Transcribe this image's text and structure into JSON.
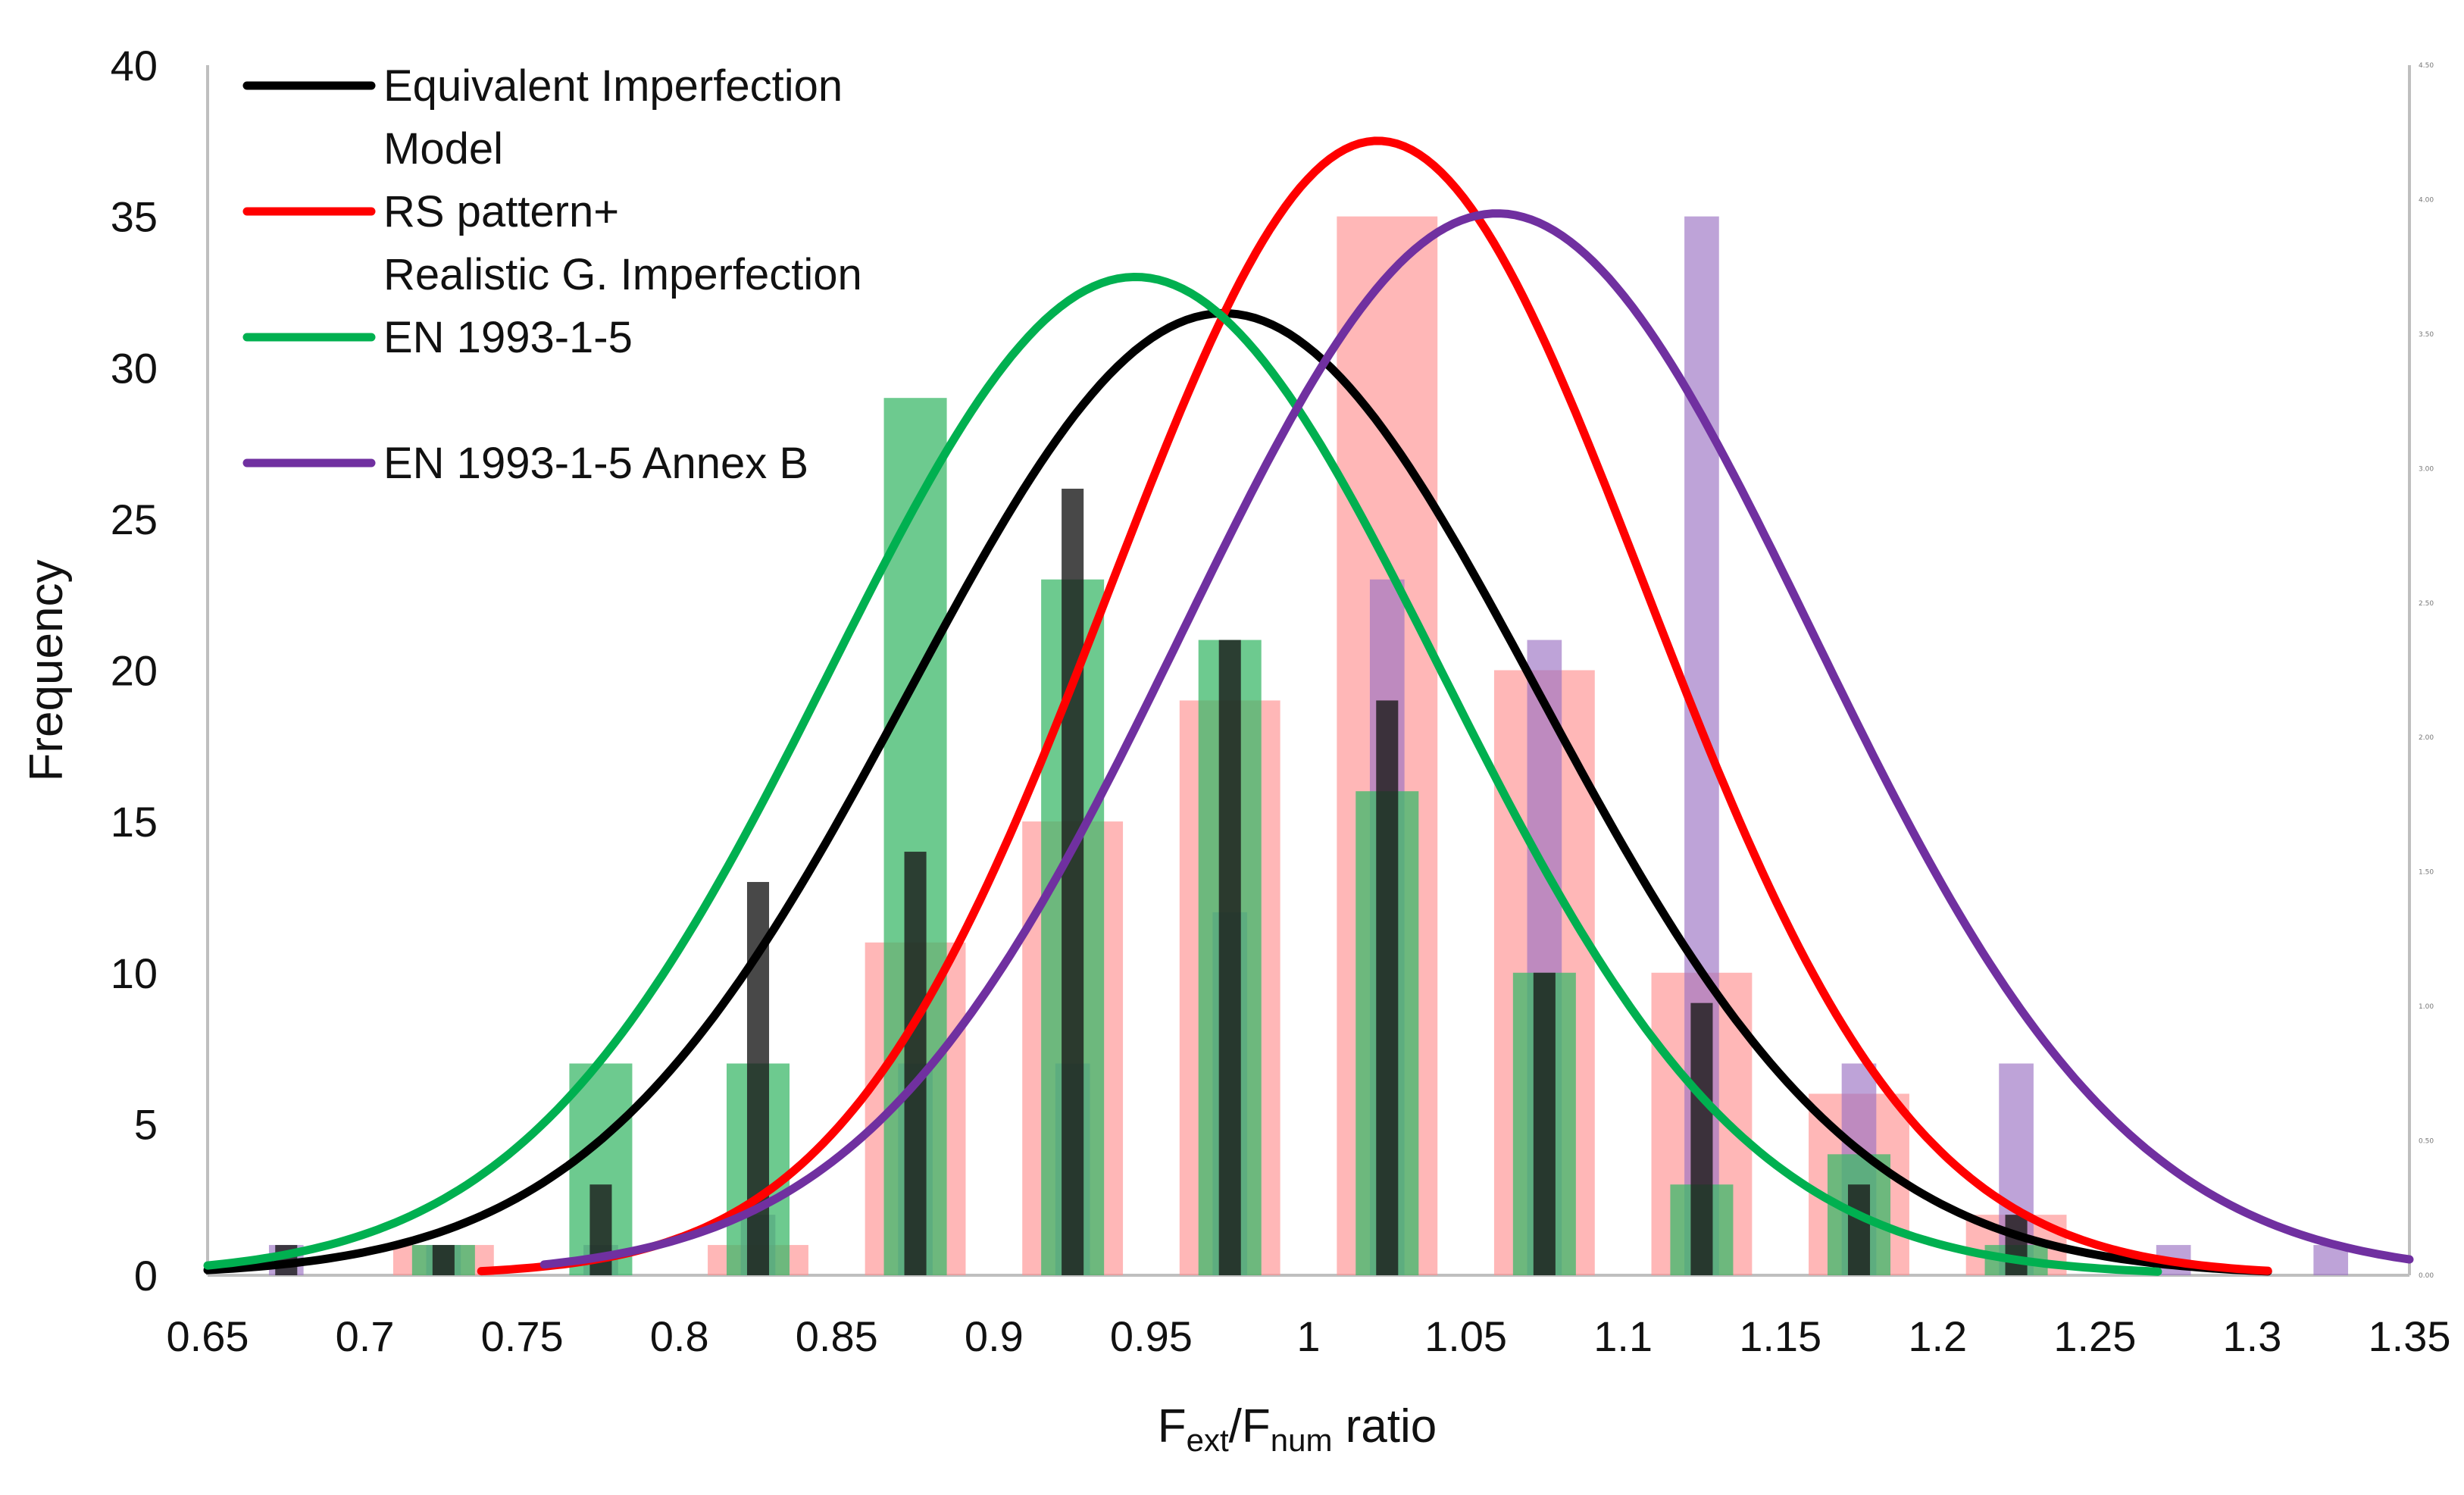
{
  "chart_data": {
    "type": "bar+line",
    "xlabel": {
      "main": "F",
      "sub1": "ext",
      "slash": "/F",
      "sub2": "num",
      "rest": " ratio"
    },
    "ylabel": "Frequency",
    "xlim": [
      0.65,
      1.35
    ],
    "ylim": [
      0,
      40
    ],
    "x_ticks": [
      "0.65",
      "0.7",
      "0.75",
      "0.8",
      "0.85",
      "0.9",
      "0.95",
      "1",
      "1.05",
      "1.1",
      "1.15",
      "1.2",
      "1.25",
      "1.3",
      "1.35"
    ],
    "y_ticks": [
      "0",
      "5",
      "10",
      "15",
      "20",
      "25",
      "30",
      "35",
      "40"
    ],
    "right_axis_ticks": [
      "0.00",
      "0.50",
      "1.00",
      "1.50",
      "2.00",
      "2.50",
      "3.00",
      "3.50",
      "4.00",
      "4.50"
    ],
    "legend": [
      {
        "label_lines": [
          "Equivalent Imperfection",
          "Model"
        ],
        "color": "#000000"
      },
      {
        "label_lines": [
          "RS pattern+",
          "Realistic G. Imperfection"
        ],
        "color": "#ff0000"
      },
      {
        "label_lines": [
          "EN 1993-1-5"
        ],
        "color": "#00b050"
      },
      {
        "label_lines": [
          "EN 1993-1-5 Annex B"
        ],
        "color": "#7030a0"
      }
    ],
    "histograms": [
      {
        "name": "RS pattern+ Realistic G. Imperfection",
        "color": "#ff9090",
        "opacity": 0.65,
        "width": 0.032,
        "x": [
          0.725,
          0.825,
          0.875,
          0.925,
          0.975,
          1.025,
          1.075,
          1.125,
          1.175,
          1.225
        ],
        "values": [
          1,
          1,
          11,
          15,
          19,
          35,
          20,
          10,
          6,
          2
        ]
      },
      {
        "name": "EN 1993-1-5 Annex B",
        "color": "#9b72c3",
        "opacity": 0.65,
        "width": 0.011,
        "x": [
          0.675,
          0.725,
          0.775,
          0.825,
          0.875,
          0.925,
          0.975,
          1.025,
          1.075,
          1.125,
          1.175,
          1.225,
          1.275,
          1.325
        ],
        "values": [
          1,
          1,
          1,
          2,
          7,
          7,
          12,
          23,
          21,
          35,
          7,
          7,
          1,
          1
        ]
      },
      {
        "name": "EN 1993-1-5",
        "color": "#3cb86a",
        "opacity": 0.75,
        "width": 0.02,
        "x": [
          0.725,
          0.775,
          0.825,
          0.875,
          0.925,
          0.975,
          1.025,
          1.075,
          1.125,
          1.175,
          1.225
        ],
        "values": [
          1,
          7,
          7,
          29,
          23,
          21,
          16,
          10,
          3,
          4,
          1
        ]
      },
      {
        "name": "Equivalent Imperfection Model",
        "color": "#1a1a1a",
        "opacity": 0.8,
        "width": 0.007,
        "x": [
          0.675,
          0.725,
          0.775,
          0.825,
          0.875,
          0.925,
          0.975,
          1.025,
          1.075,
          1.125,
          1.175,
          1.225
        ],
        "values": [
          1,
          1,
          3,
          13,
          14,
          26,
          21,
          19,
          10,
          9,
          3,
          2
        ]
      }
    ],
    "curves": [
      {
        "name": "Equivalent Imperfection Model",
        "color": "#000000",
        "mean": 0.973,
        "sd": 0.1,
        "peak": 31.8,
        "x_range": [
          0.65,
          1.305
        ]
      },
      {
        "name": "RS pattern+ Realistic G. Imperfection",
        "color": "#ff0000",
        "mean": 1.022,
        "sd": 0.085,
        "peak": 37.5,
        "x_range": [
          0.737,
          1.305
        ]
      },
      {
        "name": "EN 1993-1-5",
        "color": "#00b050",
        "mean": 0.945,
        "sd": 0.097,
        "peak": 33.0,
        "x_range": [
          0.65,
          1.27
        ]
      },
      {
        "name": "EN 1993-1-5 Annex B",
        "color": "#7030a0",
        "mean": 1.06,
        "sd": 0.1,
        "peak": 35.1,
        "x_range": [
          0.757,
          1.35
        ]
      }
    ]
  }
}
